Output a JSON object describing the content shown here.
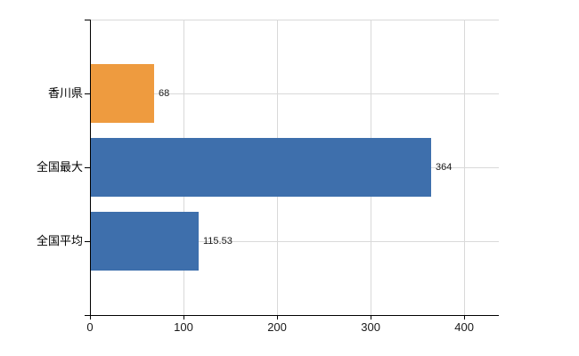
{
  "chart_data": {
    "type": "bar",
    "orientation": "horizontal",
    "title": "",
    "xlabel": "",
    "ylabel": "",
    "categories": [
      "香川県",
      "全国最大",
      "全国平均"
    ],
    "values": [
      68,
      364,
      115.53
    ],
    "value_labels": [
      "68",
      "364",
      "115.53"
    ],
    "series": [
      {
        "name": "",
        "values": [
          68,
          364,
          115.53
        ]
      }
    ],
    "bar_colors": [
      "#ee9b3f",
      "#3e6fac",
      "#3e6fac"
    ],
    "xlim": [
      0,
      437
    ],
    "x_ticks": [
      0,
      100,
      200,
      300,
      400
    ],
    "x_tick_labels": [
      "0",
      "100",
      "200",
      "300",
      "400"
    ],
    "grid": true,
    "legend": "none",
    "colors": {
      "background": "#ffffff",
      "axis": "#000000",
      "gridline": "#d9d9d9",
      "text": "#000000",
      "bar_orange": "#ee9b3f",
      "bar_blue": "#3e6fac"
    }
  }
}
